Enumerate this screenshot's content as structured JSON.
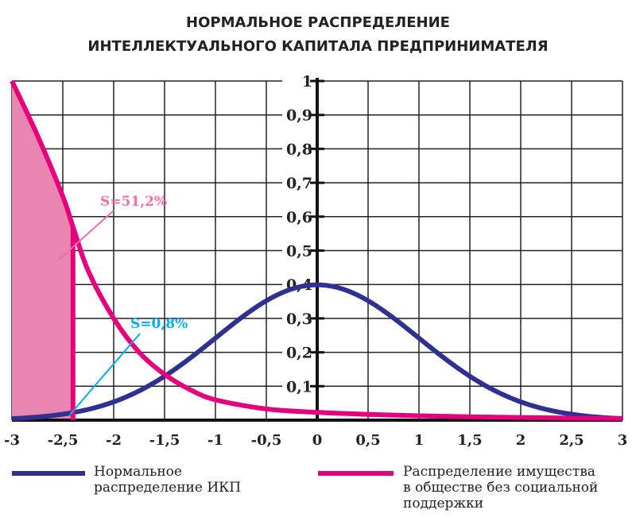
{
  "chart_data": {
    "type": "line",
    "title_line1": "НОРМАЛЬНОЕ РАСПРЕДЕЛЕНИЕ",
    "title_line2": "ИНТЕЛЛЕКТУАЛЬНОГО КАПИТАЛА ПРЕДПРИНИМАТЕЛЯ",
    "xlim": [
      -3,
      3
    ],
    "ylim": [
      0,
      1
    ],
    "grid": true,
    "x_ticks": [
      "-3",
      "-2,5",
      "-2",
      "-1,5",
      "-1",
      "-0,5",
      "0",
      "0,5",
      "1",
      "1,5",
      "2",
      "2,5",
      "3"
    ],
    "y_ticks": [
      "0,1",
      "0,2",
      "0,3",
      "0,4",
      "0,5",
      "0,6",
      "0,7",
      "0,8",
      "0,9",
      "1"
    ],
    "series": [
      {
        "name": "Нормальное распределение ИКП",
        "color": "#2e3192",
        "function": "normal_pdf",
        "mean": 0,
        "sd": 1
      },
      {
        "name": "Распределение имущества в обществе без социальной поддержки",
        "color": "#e6007e",
        "x": [
          -3,
          -2.75,
          -2.5,
          -2.4,
          -2.25,
          -2,
          -1.75,
          -1.5,
          -1.25,
          -1,
          -0.5,
          0,
          0.5,
          1,
          1.5,
          2,
          2.5,
          3
        ],
        "y": [
          1.0,
          0.84,
          0.66,
          0.57,
          0.44,
          0.3,
          0.2,
          0.135,
          0.09,
          0.06,
          0.033,
          0.023,
          0.017,
          0.013,
          0.01,
          0.008,
          0.006,
          0.005
        ]
      }
    ],
    "shaded_region": {
      "series": 1,
      "x_from": -3,
      "x_to": -2.4,
      "color": "#e885b0"
    },
    "annotations": [
      {
        "text": "S=51,2%",
        "color": "#f06ea9"
      },
      {
        "text": "S=0,8%",
        "color": "#00aeef"
      }
    ],
    "legend": [
      {
        "label_line1": "Нормальное",
        "label_line2": "распределение ИКП",
        "color": "#2e3192"
      },
      {
        "label_line1": "Распределение имущества",
        "label_line2": "в обществе без социальной",
        "label_line3": "поддержки",
        "color": "#e6007e"
      }
    ],
    "legend_position": "bottom"
  }
}
